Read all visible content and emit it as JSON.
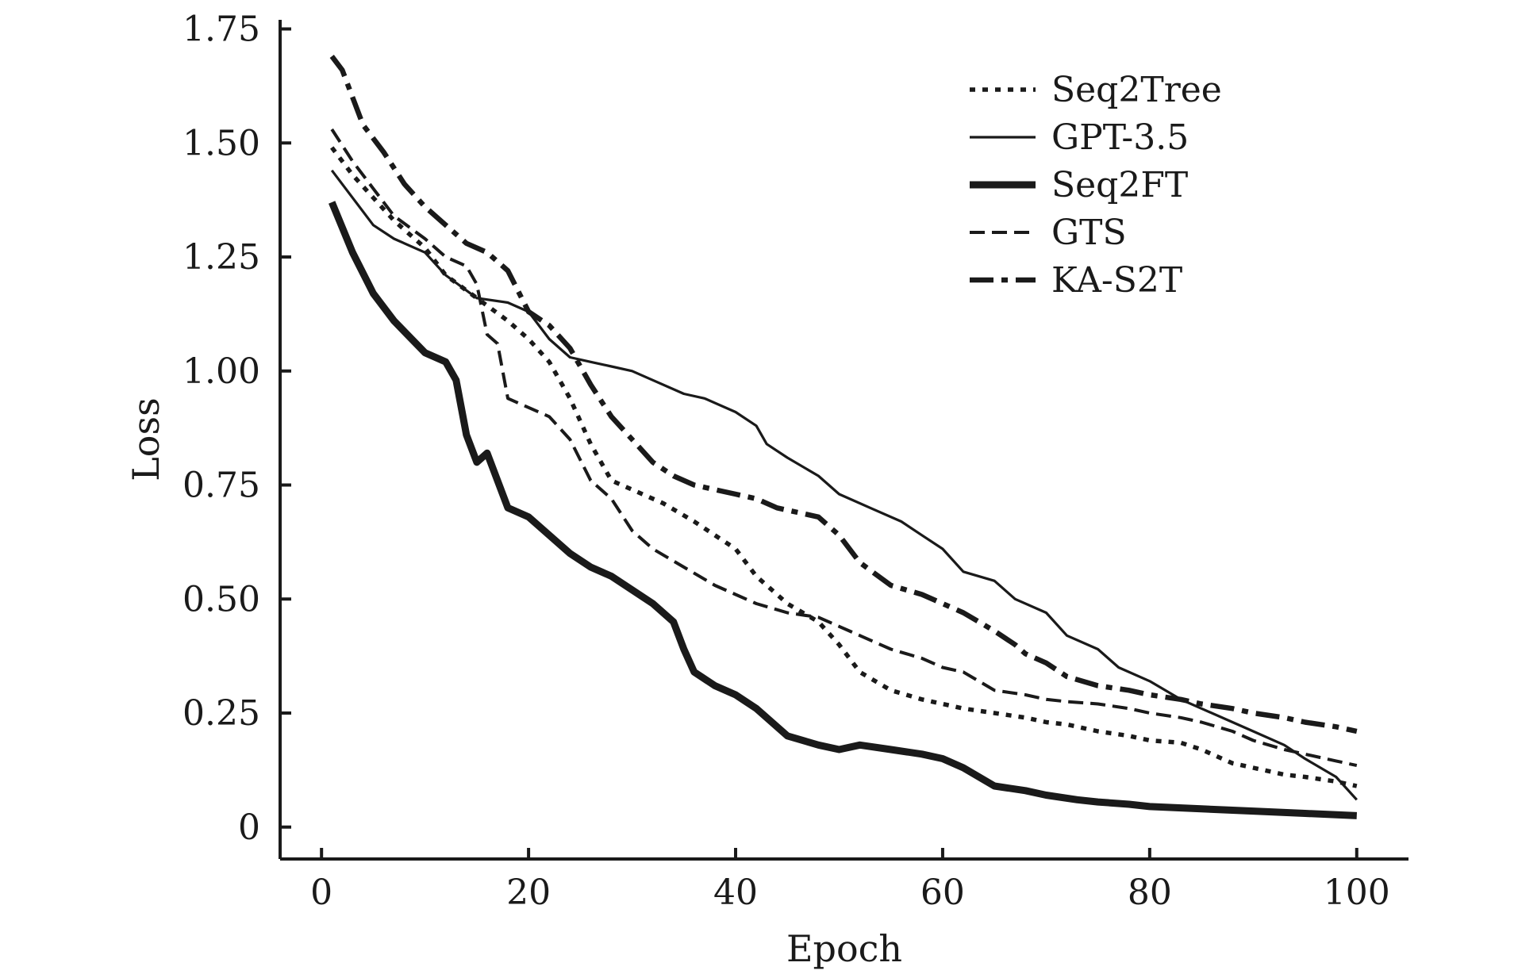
{
  "chart_data": {
    "type": "line",
    "title": "",
    "xlabel": "Epoch",
    "ylabel": "Loss",
    "xlim": [
      -4,
      105
    ],
    "ylim": [
      -0.07,
      1.77
    ],
    "x_ticks": [
      0,
      20,
      40,
      60,
      80,
      100
    ],
    "x_tick_labels": [
      "0",
      "20",
      "40",
      "60",
      "80",
      "100"
    ],
    "y_ticks": [
      0,
      0.25,
      0.5,
      0.75,
      1.0,
      1.25,
      1.5,
      1.75
    ],
    "y_tick_labels": [
      "0",
      "0.25",
      "0.50",
      "0.75",
      "1.00",
      "1.25",
      "1.50",
      "1.75"
    ],
    "grid": false,
    "legend_position": "top-right",
    "series": [
      {
        "name": "Seq2Tree",
        "style": "dotted",
        "color": "#1a1a1a",
        "x": [
          1,
          3,
          5,
          7,
          10,
          12,
          15,
          18,
          20,
          22,
          24,
          26,
          28,
          30,
          33,
          36,
          38,
          40,
          42,
          45,
          48,
          50,
          52,
          55,
          58,
          60,
          62,
          65,
          68,
          70,
          72,
          75,
          78,
          80,
          83,
          85,
          88,
          90,
          93,
          95,
          98,
          100
        ],
        "y": [
          1.49,
          1.43,
          1.38,
          1.33,
          1.27,
          1.21,
          1.16,
          1.11,
          1.07,
          1.02,
          0.94,
          0.84,
          0.76,
          0.74,
          0.71,
          0.67,
          0.64,
          0.61,
          0.55,
          0.49,
          0.45,
          0.4,
          0.34,
          0.3,
          0.28,
          0.27,
          0.26,
          0.25,
          0.24,
          0.23,
          0.225,
          0.21,
          0.2,
          0.19,
          0.185,
          0.17,
          0.14,
          0.13,
          0.115,
          0.11,
          0.1,
          0.09
        ]
      },
      {
        "name": "GPT-3.5",
        "style": "solid-thin",
        "color": "#1a1a1a",
        "x": [
          1,
          3,
          5,
          7,
          10,
          12,
          15,
          18,
          20,
          22,
          24,
          26,
          28,
          30,
          32,
          35,
          37,
          40,
          42,
          43,
          45,
          48,
          50,
          53,
          56,
          58,
          60,
          62,
          65,
          67,
          70,
          72,
          75,
          77,
          80,
          83,
          85,
          88,
          90,
          93,
          95,
          98,
          100
        ],
        "y": [
          1.44,
          1.38,
          1.32,
          1.29,
          1.26,
          1.21,
          1.16,
          1.15,
          1.13,
          1.07,
          1.03,
          1.02,
          1.01,
          1.0,
          0.98,
          0.95,
          0.94,
          0.91,
          0.88,
          0.84,
          0.81,
          0.77,
          0.73,
          0.7,
          0.67,
          0.64,
          0.61,
          0.56,
          0.54,
          0.5,
          0.47,
          0.42,
          0.39,
          0.35,
          0.32,
          0.28,
          0.26,
          0.23,
          0.21,
          0.18,
          0.15,
          0.11,
          0.06
        ]
      },
      {
        "name": "Seq2FT",
        "style": "solid-thick",
        "color": "#1a1a1a",
        "x": [
          1,
          3,
          5,
          7,
          10,
          12,
          13,
          14,
          15,
          16,
          18,
          20,
          22,
          24,
          26,
          28,
          30,
          32,
          34,
          35,
          36,
          38,
          40,
          42,
          45,
          48,
          50,
          52,
          55,
          58,
          60,
          62,
          65,
          68,
          70,
          73,
          75,
          78,
          80,
          85,
          90,
          95,
          100
        ],
        "y": [
          1.37,
          1.26,
          1.17,
          1.11,
          1.04,
          1.02,
          0.98,
          0.86,
          0.8,
          0.82,
          0.7,
          0.68,
          0.64,
          0.6,
          0.57,
          0.55,
          0.52,
          0.49,
          0.45,
          0.39,
          0.34,
          0.31,
          0.29,
          0.26,
          0.2,
          0.18,
          0.17,
          0.18,
          0.17,
          0.16,
          0.15,
          0.13,
          0.09,
          0.08,
          0.07,
          0.06,
          0.055,
          0.05,
          0.045,
          0.04,
          0.035,
          0.03,
          0.025
        ]
      },
      {
        "name": "GTS",
        "style": "dashed",
        "color": "#1a1a1a",
        "x": [
          1,
          3,
          5,
          7,
          10,
          12,
          14,
          15,
          16,
          17,
          18,
          20,
          22,
          24,
          26,
          28,
          30,
          32,
          35,
          38,
          40,
          42,
          45,
          48,
          50,
          52,
          55,
          58,
          60,
          62,
          65,
          68,
          70,
          72,
          75,
          78,
          80,
          83,
          85,
          88,
          90,
          93,
          95,
          98,
          100
        ],
        "y": [
          1.53,
          1.46,
          1.4,
          1.34,
          1.29,
          1.25,
          1.23,
          1.19,
          1.08,
          1.06,
          0.94,
          0.92,
          0.9,
          0.85,
          0.76,
          0.72,
          0.65,
          0.61,
          0.57,
          0.53,
          0.51,
          0.49,
          0.47,
          0.46,
          0.44,
          0.42,
          0.39,
          0.37,
          0.35,
          0.34,
          0.3,
          0.29,
          0.28,
          0.275,
          0.27,
          0.26,
          0.25,
          0.24,
          0.23,
          0.21,
          0.19,
          0.17,
          0.16,
          0.145,
          0.135
        ]
      },
      {
        "name": "KA-S2T",
        "style": "dashdot",
        "color": "#1a1a1a",
        "x": [
          1,
          2,
          4,
          6,
          8,
          10,
          12,
          14,
          16,
          18,
          20,
          22,
          24,
          26,
          28,
          30,
          32,
          34,
          36,
          38,
          40,
          42,
          44,
          46,
          48,
          50,
          52,
          55,
          58,
          60,
          62,
          65,
          67,
          68,
          70,
          72,
          75,
          78,
          80,
          83,
          85,
          88,
          90,
          93,
          95,
          98,
          100
        ],
        "y": [
          1.69,
          1.66,
          1.54,
          1.48,
          1.41,
          1.36,
          1.32,
          1.28,
          1.26,
          1.22,
          1.13,
          1.1,
          1.05,
          0.97,
          0.9,
          0.85,
          0.8,
          0.77,
          0.75,
          0.74,
          0.73,
          0.72,
          0.7,
          0.69,
          0.68,
          0.64,
          0.58,
          0.53,
          0.51,
          0.49,
          0.47,
          0.43,
          0.4,
          0.38,
          0.36,
          0.33,
          0.31,
          0.3,
          0.29,
          0.28,
          0.27,
          0.26,
          0.25,
          0.24,
          0.23,
          0.22,
          0.21
        ]
      }
    ]
  }
}
